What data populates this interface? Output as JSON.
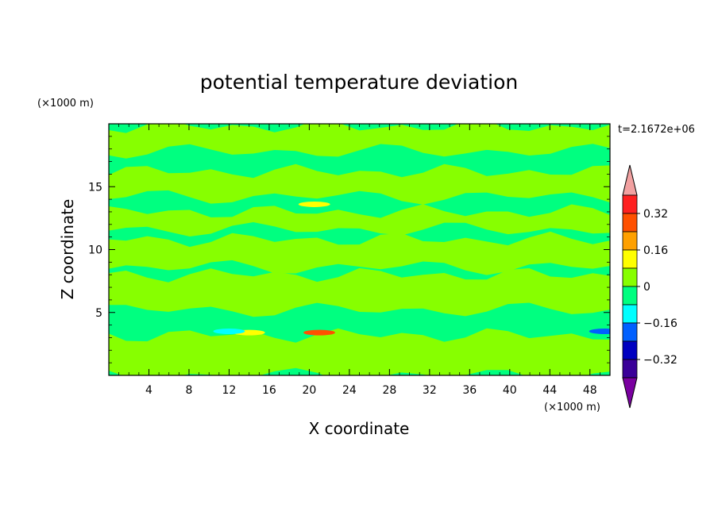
{
  "chart_data": {
    "type": "heatmap",
    "title": "potential temperature deviation",
    "xlabel": "X coordinate",
    "ylabel": "Z coordinate",
    "x_unit": "(×1000 m)",
    "y_unit": "(×1000 m)",
    "time_label": "t=2.1672e+06",
    "xlim": [
      0,
      50
    ],
    "ylim": [
      0,
      20
    ],
    "x_ticks": [
      4,
      8,
      12,
      16,
      20,
      24,
      28,
      32,
      36,
      40,
      44,
      48
    ],
    "y_ticks": [
      5,
      10,
      15
    ],
    "colorbar": {
      "labels": [
        0.32,
        0.16,
        0,
        -0.16,
        -0.32
      ],
      "label_text": [
        "0.32",
        "0.16",
        "0",
        "−0.16",
        "−0.32"
      ],
      "levels": [
        {
          "min": 0.4,
          "max": null,
          "color": "#f2a1a1"
        },
        {
          "min": 0.32,
          "max": 0.4,
          "color": "#ff2020"
        },
        {
          "min": 0.24,
          "max": 0.32,
          "color": "#ff5000"
        },
        {
          "min": 0.16,
          "max": 0.24,
          "color": "#ffa000"
        },
        {
          "min": 0.08,
          "max": 0.16,
          "color": "#ffff00"
        },
        {
          "min": 0,
          "max": 0.08,
          "color": "#87ff00"
        },
        {
          "min": -0.08,
          "max": 0,
          "color": "#00ff80"
        },
        {
          "min": -0.16,
          "max": -0.08,
          "color": "#00ffff"
        },
        {
          "min": -0.24,
          "max": -0.16,
          "color": "#0060ff"
        },
        {
          "min": -0.32,
          "max": -0.24,
          "color": "#0000c0"
        },
        {
          "min": -0.4,
          "max": -0.32,
          "color": "#3a0098"
        },
        {
          "min": null,
          "max": -0.4,
          "color": "#7a00a0"
        }
      ]
    },
    "field": {
      "background_color": "#00ff80",
      "positive_color": "#87ff00",
      "bands_z": [
        {
          "x": [
            0,
            50
          ],
          "z": [
            17.8,
            19.8
          ],
          "sign": "+",
          "note": "top band"
        },
        {
          "x": [
            0,
            50
          ],
          "z": [
            14.2,
            16.2
          ],
          "sign": "+"
        },
        {
          "x": [
            0,
            50
          ],
          "z": [
            11.6,
            13.0
          ],
          "sign": "+"
        },
        {
          "x": [
            0,
            50
          ],
          "z": [
            8.6,
            10.8
          ],
          "sign": "+"
        },
        {
          "x": [
            0,
            50
          ],
          "z": [
            5.2,
            8.0
          ],
          "sign": "+"
        },
        {
          "x": [
            0,
            50
          ],
          "z": [
            0.0,
            3.2
          ],
          "sign": "+"
        }
      ],
      "hot_spots": [
        {
          "x": 20.5,
          "z": 13.6,
          "value": 0.12
        },
        {
          "x": 21.0,
          "z": 3.4,
          "value": 0.3
        },
        {
          "x": 14.0,
          "z": 3.4,
          "value": 0.14
        },
        {
          "x": 12.0,
          "z": 3.5,
          "value": -0.12
        },
        {
          "x": 49.5,
          "z": 3.5,
          "value": -0.18
        }
      ]
    }
  }
}
